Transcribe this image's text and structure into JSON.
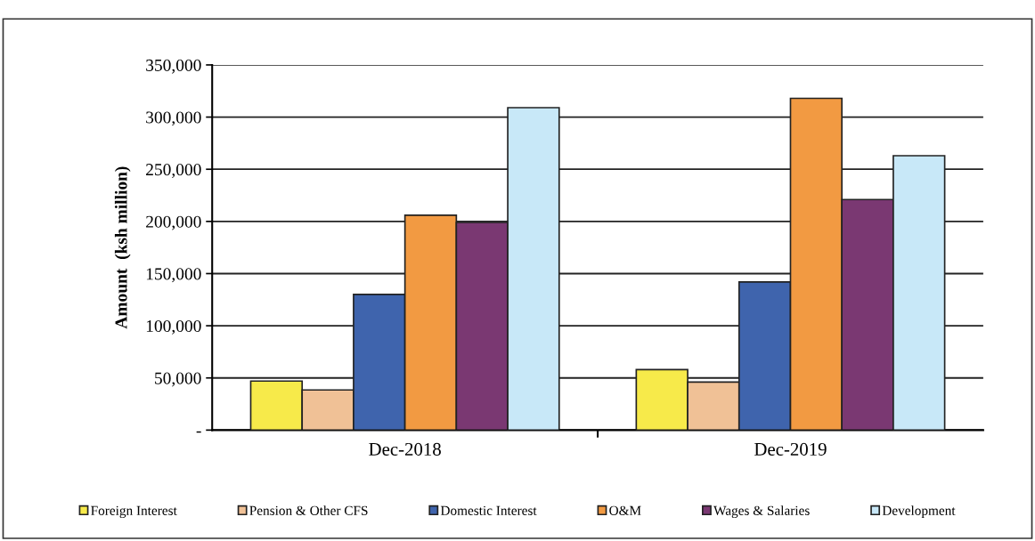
{
  "chart_data": {
    "type": "bar",
    "ylabel": "Amount  (ksh million)",
    "categories": [
      "Dec-2018",
      "Dec-2019"
    ],
    "series": [
      {
        "name": "Foreign Interest",
        "color": "#f7ea4a",
        "values": [
          47000,
          58000
        ]
      },
      {
        "name": "Pension & Other CFS",
        "color": "#f0c196",
        "values": [
          38500,
          46000
        ]
      },
      {
        "name": "Domestic Interest",
        "color": "#3f64ad",
        "values": [
          130000,
          142000
        ]
      },
      {
        "name": "O&M",
        "color": "#f29a42",
        "values": [
          206000,
          318000
        ]
      },
      {
        "name": "Wages & Salaries",
        "color": "#7a3872",
        "values": [
          199000,
          221000
        ]
      },
      {
        "name": "Development",
        "color": "#c8e8f8",
        "values": [
          309000,
          263000
        ]
      }
    ],
    "ylim": [
      0,
      350000
    ],
    "yticks": [
      {
        "value": 0,
        "label": "-"
      },
      {
        "value": 50000,
        "label": "50,000"
      },
      {
        "value": 100000,
        "label": "100,000"
      },
      {
        "value": 150000,
        "label": "150,000"
      },
      {
        "value": 200000,
        "label": "200,000"
      },
      {
        "value": 250000,
        "label": "250,000"
      },
      {
        "value": 300000,
        "label": "300,000"
      },
      {
        "value": 350000,
        "label": "350,000"
      }
    ],
    "grid": "y",
    "legend": "bottom"
  }
}
